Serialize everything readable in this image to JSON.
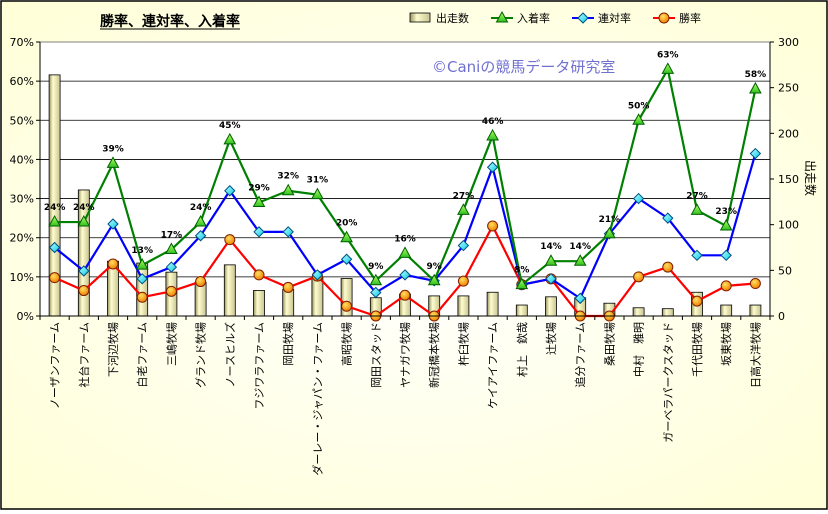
{
  "chart_data": {
    "type": "bar+line",
    "title": "勝率、連対率、入着率",
    "watermark": "©Caniの競馬データ研究室",
    "y2label": "出走数",
    "ylim": [
      0,
      70
    ],
    "y2lim": [
      0,
      300
    ],
    "y_ticks": [
      "0%",
      "10%",
      "20%",
      "30%",
      "40%",
      "50%",
      "60%",
      "70%"
    ],
    "y2_ticks": [
      "0",
      "50",
      "100",
      "150",
      "200",
      "250",
      "300"
    ],
    "categories": [
      "ノーザンファーム",
      "社台ファーム",
      "下河辺牧場",
      "白老ファーム",
      "三嶋牧場",
      "グランド牧場",
      "ノースヒルズ",
      "フジワラファーム",
      "岡田牧場",
      "ダーレー・ジャパン・ファーム",
      "高昭牧場",
      "岡田スタッド",
      "ヤナガワ牧場",
      "新冠橋本牧場",
      "杵臼牧場",
      "ケイアイファーム",
      "村上　欽哉",
      "辻牧場",
      "追分ファーム",
      "桑田牧場",
      "中村　雅明",
      "ガーベラパークスタッド",
      "千代田牧場",
      "坂東牧場",
      "日高大洋牧場"
    ],
    "series": [
      {
        "name": "出走数",
        "type": "bar",
        "axis": "right",
        "color": "#E8E4A0",
        "values": [
          264,
          138,
          60,
          58,
          48,
          37,
          56,
          28,
          29,
          42,
          41,
          20,
          24,
          22,
          22,
          26,
          12,
          21,
          20,
          14,
          9,
          8,
          26,
          12,
          12
        ]
      },
      {
        "name": "入着率",
        "type": "line",
        "axis": "left",
        "color": "#008000",
        "values": [
          24,
          24,
          39,
          13,
          17,
          24,
          45,
          29,
          32,
          31,
          20,
          9,
          16,
          9,
          27,
          46,
          8,
          14,
          14,
          21,
          50,
          63,
          27,
          23,
          58
        ],
        "labels": [
          "24%",
          "24%",
          "39%",
          "13%",
          "17%",
          "24%",
          "45%",
          "29%",
          "32%",
          "31%",
          "20%",
          "9%",
          "16%",
          "9%",
          "27%",
          "46%",
          "8%",
          "14%",
          "14%",
          "21%",
          "50%",
          "63%",
          "27%",
          "23%",
          "58%"
        ]
      },
      {
        "name": "連対率",
        "type": "line",
        "axis": "left",
        "color": "#0000FF",
        "values": [
          17.5,
          11.5,
          23.5,
          9.5,
          12.5,
          20.5,
          32,
          21.5,
          21.5,
          10.5,
          14.5,
          6,
          10.5,
          9,
          18,
          38,
          8,
          9.5,
          4.5,
          21,
          30,
          25,
          15.5,
          15.5,
          41.5
        ]
      },
      {
        "name": "勝率",
        "type": "line",
        "axis": "left",
        "color": "#FF0000",
        "values": [
          9.8,
          6.5,
          13.3,
          4.8,
          6.3,
          8.8,
          19.5,
          10.5,
          7.3,
          10.2,
          2.5,
          0,
          5.3,
          0,
          8.9,
          23,
          8,
          9.5,
          0,
          0,
          10,
          12.5,
          3.8,
          7.7,
          8.3
        ]
      }
    ],
    "legend_position": "top"
  }
}
